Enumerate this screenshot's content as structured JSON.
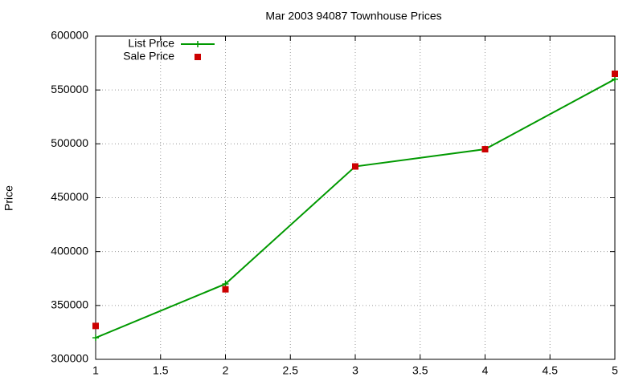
{
  "chart_data": {
    "type": "line",
    "title": "Mar 2003 94087 Townhouse Prices",
    "y_label": "Price",
    "x": [
      1,
      2,
      3,
      4,
      5
    ],
    "series": [
      {
        "name": "List Price",
        "color": "#009900",
        "style": "linespoints",
        "values": [
          320000,
          370000,
          479000,
          495000,
          560000
        ]
      },
      {
        "name": "Sale Price",
        "color": "#cc0000",
        "style": "points",
        "values": [
          331000,
          365000,
          479000,
          495000,
          565000
        ]
      }
    ],
    "xlim": [
      1,
      5
    ],
    "xticks": [
      1,
      1.5,
      2,
      2.5,
      3,
      3.5,
      4,
      4.5,
      5
    ],
    "ylim": [
      300000,
      600000
    ],
    "yticks": [
      300000,
      350000,
      400000,
      450000,
      500000,
      550000,
      600000
    ],
    "grid": true,
    "legend": "top-left"
  }
}
